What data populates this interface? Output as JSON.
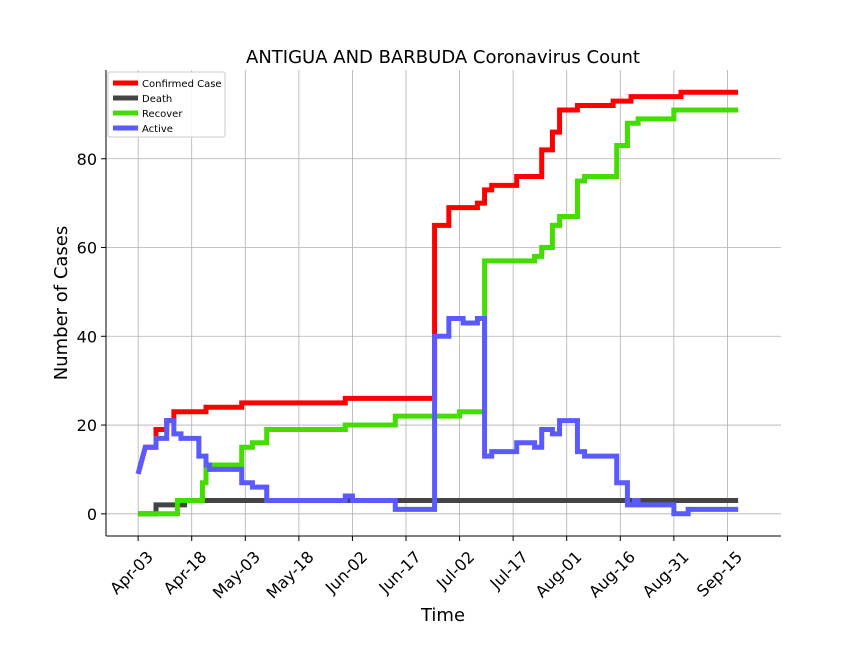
{
  "chart_data": {
    "type": "line",
    "title": "ANTIGUA AND BARBUDA Coronavirus Count",
    "xlabel": "Time",
    "ylabel": "Number of Cases",
    "x_ticks": [
      "Apr-03",
      "Apr-18",
      "May-03",
      "May-18",
      "Jun-02",
      "Jun-17",
      "Jul-02",
      "Jul-17",
      "Aug-01",
      "Aug-16",
      "Aug-31",
      "Sep-15"
    ],
    "y_ticks": [
      0,
      20,
      40,
      60,
      80
    ],
    "ylim": [
      -5,
      100
    ],
    "xlim": [
      "2020-03-25",
      "2020-09-30"
    ],
    "grid": true,
    "legend_position": "top-left",
    "series": [
      {
        "name": "Confirmed Case",
        "color": "#ff0000",
        "points": [
          [
            "2020-04-03",
            9
          ],
          [
            "2020-04-05",
            15
          ],
          [
            "2020-04-08",
            15
          ],
          [
            "2020-04-08",
            19
          ],
          [
            "2020-04-11",
            19
          ],
          [
            "2020-04-11",
            21
          ],
          [
            "2020-04-13",
            21
          ],
          [
            "2020-04-13",
            23
          ],
          [
            "2020-04-22",
            23
          ],
          [
            "2020-04-22",
            24
          ],
          [
            "2020-05-02",
            24
          ],
          [
            "2020-05-02",
            25
          ],
          [
            "2020-05-31",
            25
          ],
          [
            "2020-05-31",
            26
          ],
          [
            "2020-06-25",
            26
          ],
          [
            "2020-06-25",
            65
          ],
          [
            "2020-06-29",
            65
          ],
          [
            "2020-06-29",
            69
          ],
          [
            "2020-07-07",
            69
          ],
          [
            "2020-07-07",
            70
          ],
          [
            "2020-07-09",
            70
          ],
          [
            "2020-07-09",
            73
          ],
          [
            "2020-07-11",
            73
          ],
          [
            "2020-07-11",
            74
          ],
          [
            "2020-07-18",
            74
          ],
          [
            "2020-07-18",
            76
          ],
          [
            "2020-07-25",
            76
          ],
          [
            "2020-07-25",
            82
          ],
          [
            "2020-07-28",
            82
          ],
          [
            "2020-07-28",
            86
          ],
          [
            "2020-07-30",
            86
          ],
          [
            "2020-07-30",
            91
          ],
          [
            "2020-08-04",
            91
          ],
          [
            "2020-08-04",
            92
          ],
          [
            "2020-08-14",
            92
          ],
          [
            "2020-08-14",
            93
          ],
          [
            "2020-08-19",
            93
          ],
          [
            "2020-08-19",
            94
          ],
          [
            "2020-09-02",
            94
          ],
          [
            "2020-09-02",
            95
          ],
          [
            "2020-09-18",
            95
          ]
        ]
      },
      {
        "name": "Death",
        "color": "#444444",
        "points": [
          [
            "2020-04-03",
            0
          ],
          [
            "2020-04-08",
            0
          ],
          [
            "2020-04-08",
            2
          ],
          [
            "2020-04-16",
            2
          ],
          [
            "2020-04-16",
            3
          ],
          [
            "2020-09-18",
            3
          ]
        ]
      },
      {
        "name": "Recover",
        "color": "#44dd00",
        "points": [
          [
            "2020-04-03",
            0
          ],
          [
            "2020-04-14",
            0
          ],
          [
            "2020-04-14",
            3
          ],
          [
            "2020-04-21",
            3
          ],
          [
            "2020-04-21",
            7
          ],
          [
            "2020-04-22",
            7
          ],
          [
            "2020-04-22",
            10
          ],
          [
            "2020-04-23",
            10
          ],
          [
            "2020-04-23",
            11
          ],
          [
            "2020-05-02",
            11
          ],
          [
            "2020-05-02",
            15
          ],
          [
            "2020-05-05",
            15
          ],
          [
            "2020-05-05",
            16
          ],
          [
            "2020-05-09",
            16
          ],
          [
            "2020-05-09",
            19
          ],
          [
            "2020-05-31",
            19
          ],
          [
            "2020-05-31",
            20
          ],
          [
            "2020-06-14",
            20
          ],
          [
            "2020-06-14",
            22
          ],
          [
            "2020-07-02",
            22
          ],
          [
            "2020-07-02",
            23
          ],
          [
            "2020-07-09",
            23
          ],
          [
            "2020-07-09",
            57
          ],
          [
            "2020-07-23",
            57
          ],
          [
            "2020-07-23",
            58
          ],
          [
            "2020-07-25",
            58
          ],
          [
            "2020-07-25",
            60
          ],
          [
            "2020-07-28",
            60
          ],
          [
            "2020-07-28",
            65
          ],
          [
            "2020-07-30",
            65
          ],
          [
            "2020-07-30",
            67
          ],
          [
            "2020-08-04",
            67
          ],
          [
            "2020-08-04",
            75
          ],
          [
            "2020-08-06",
            75
          ],
          [
            "2020-08-06",
            76
          ],
          [
            "2020-08-15",
            76
          ],
          [
            "2020-08-15",
            83
          ],
          [
            "2020-08-18",
            83
          ],
          [
            "2020-08-18",
            88
          ],
          [
            "2020-08-21",
            88
          ],
          [
            "2020-08-21",
            89
          ],
          [
            "2020-08-31",
            89
          ],
          [
            "2020-08-31",
            91
          ],
          [
            "2020-09-18",
            91
          ]
        ]
      },
      {
        "name": "Active",
        "color": "#5a5aff",
        "points": [
          [
            "2020-04-03",
            9
          ],
          [
            "2020-04-05",
            15
          ],
          [
            "2020-04-08",
            15
          ],
          [
            "2020-04-08",
            17
          ],
          [
            "2020-04-11",
            17
          ],
          [
            "2020-04-11",
            21
          ],
          [
            "2020-04-13",
            21
          ],
          [
            "2020-04-13",
            18
          ],
          [
            "2020-04-15",
            18
          ],
          [
            "2020-04-15",
            17
          ],
          [
            "2020-04-20",
            17
          ],
          [
            "2020-04-20",
            13
          ],
          [
            "2020-04-22",
            13
          ],
          [
            "2020-04-22",
            11
          ],
          [
            "2020-04-23",
            11
          ],
          [
            "2020-04-23",
            10
          ],
          [
            "2020-05-02",
            10
          ],
          [
            "2020-05-02",
            7
          ],
          [
            "2020-05-05",
            7
          ],
          [
            "2020-05-05",
            6
          ],
          [
            "2020-05-09",
            6
          ],
          [
            "2020-05-09",
            3
          ],
          [
            "2020-05-31",
            3
          ],
          [
            "2020-05-31",
            4
          ],
          [
            "2020-06-02",
            4
          ],
          [
            "2020-06-02",
            3
          ],
          [
            "2020-06-14",
            3
          ],
          [
            "2020-06-14",
            1
          ],
          [
            "2020-06-25",
            1
          ],
          [
            "2020-06-25",
            40
          ],
          [
            "2020-06-29",
            40
          ],
          [
            "2020-06-29",
            44
          ],
          [
            "2020-07-03",
            44
          ],
          [
            "2020-07-03",
            43
          ],
          [
            "2020-07-07",
            43
          ],
          [
            "2020-07-07",
            44
          ],
          [
            "2020-07-09",
            44
          ],
          [
            "2020-07-09",
            13
          ],
          [
            "2020-07-11",
            13
          ],
          [
            "2020-07-11",
            14
          ],
          [
            "2020-07-18",
            14
          ],
          [
            "2020-07-18",
            16
          ],
          [
            "2020-07-23",
            16
          ],
          [
            "2020-07-23",
            15
          ],
          [
            "2020-07-25",
            15
          ],
          [
            "2020-07-25",
            19
          ],
          [
            "2020-07-28",
            19
          ],
          [
            "2020-07-28",
            18
          ],
          [
            "2020-07-30",
            18
          ],
          [
            "2020-07-30",
            21
          ],
          [
            "2020-08-04",
            21
          ],
          [
            "2020-08-04",
            14
          ],
          [
            "2020-08-06",
            14
          ],
          [
            "2020-08-06",
            13
          ],
          [
            "2020-08-15",
            13
          ],
          [
            "2020-08-15",
            7
          ],
          [
            "2020-08-18",
            7
          ],
          [
            "2020-08-18",
            2
          ],
          [
            "2020-08-20",
            2
          ],
          [
            "2020-08-20",
            3
          ],
          [
            "2020-08-21",
            3
          ],
          [
            "2020-08-21",
            2
          ],
          [
            "2020-08-31",
            2
          ],
          [
            "2020-08-31",
            0
          ],
          [
            "2020-09-04",
            0
          ],
          [
            "2020-09-04",
            1
          ],
          [
            "2020-09-18",
            1
          ]
        ]
      }
    ]
  }
}
